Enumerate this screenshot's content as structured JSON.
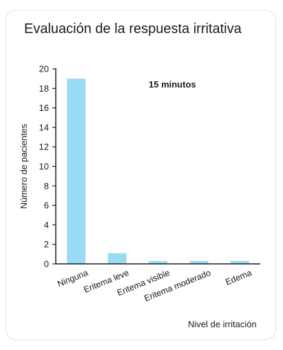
{
  "figure": {
    "title": "Evaluación de la respuesta irritativa"
  },
  "chart_data": {
    "type": "bar",
    "title": "Evaluación de la respuesta irritativa",
    "annotation": "15 minutos",
    "categories": [
      "Ninguna",
      "Eritema leve",
      "Eritema visible",
      "Eritema moderado",
      "Edema"
    ],
    "values": [
      19,
      1.1,
      0.3,
      0.3,
      0.3
    ],
    "xlabel": "Nivel de irritación",
    "ylabel": "Número de pacientes",
    "ylim": [
      0,
      20
    ],
    "yticks": [
      0,
      2,
      4,
      6,
      8,
      10,
      12,
      14,
      16,
      18,
      20
    ],
    "bar_color": "#99daf4",
    "axis_color": "#1a1a1a",
    "grid": false,
    "legend": "none"
  }
}
